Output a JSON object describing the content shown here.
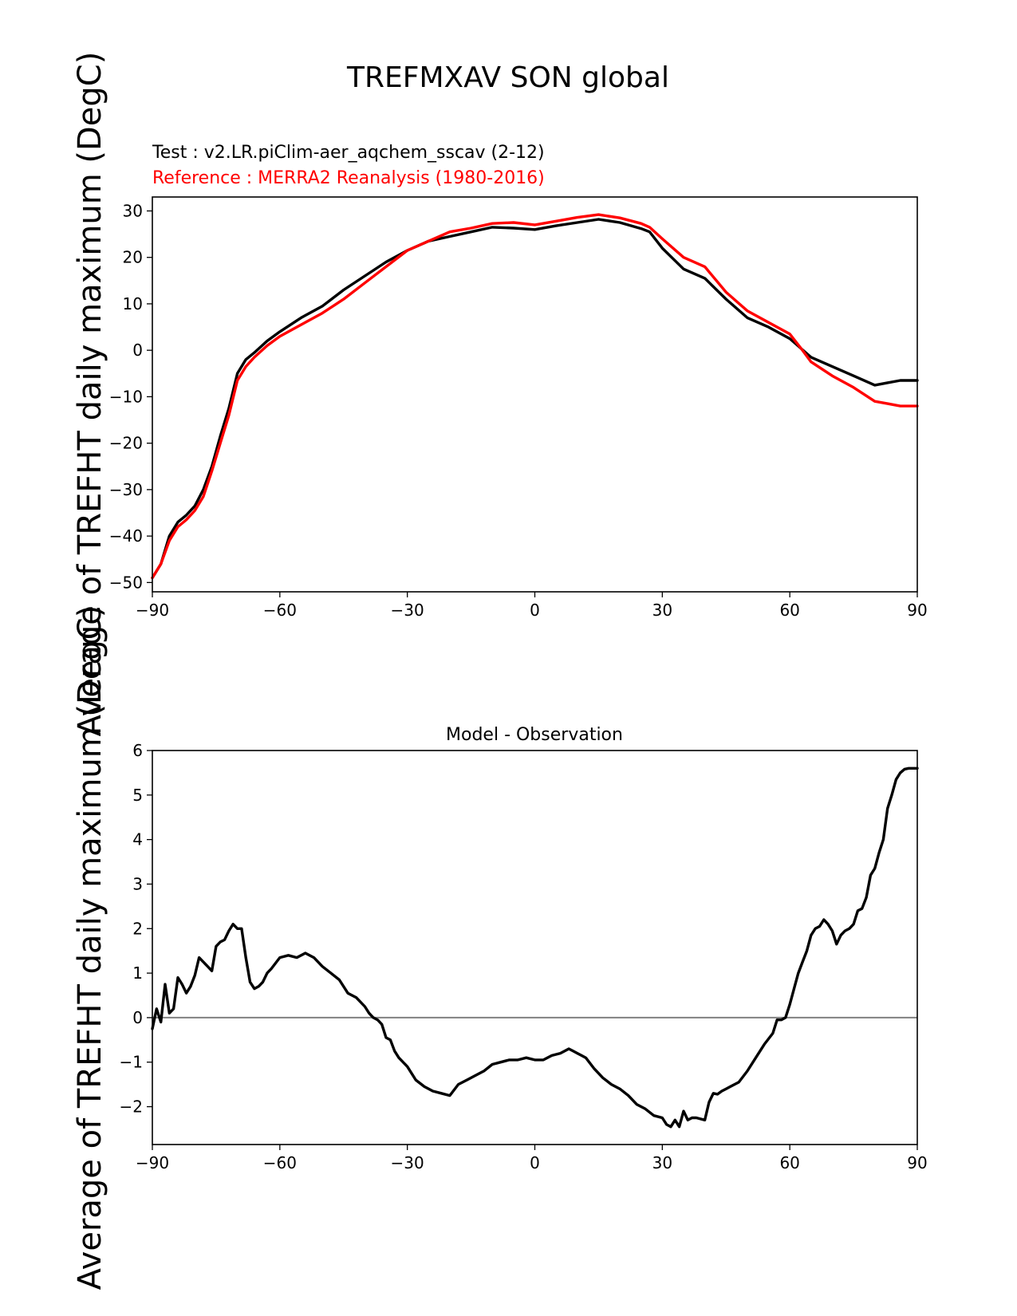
{
  "figure": {
    "suptitle": "TREFMXAV SON global"
  },
  "chart_data": [
    {
      "type": "line",
      "test_label": "Test : v2.LR.piClim-aer_aqchem_sscav (2-12)",
      "reference_label": "Reference : MERRA2 Reanalysis (1980-2016)",
      "ylabel": "Average of TREFHT daily maximum (DegC)",
      "xlim": [
        -90,
        90
      ],
      "ylim": [
        -52,
        33
      ],
      "xticks": [
        -90,
        -60,
        -30,
        0,
        30,
        60,
        90
      ],
      "xtick_labels": [
        "−90",
        "−60",
        "−30",
        "0",
        "30",
        "60",
        "90"
      ],
      "yticks": [
        30,
        20,
        10,
        0,
        -10,
        -20,
        -30,
        -40,
        -50
      ],
      "ytick_labels": [
        "30",
        "20",
        "10",
        "0",
        "−10",
        "−20",
        "−30",
        "−40",
        "−50"
      ],
      "series": [
        {
          "color": "#000000",
          "x": [
            -90,
            -88,
            -86,
            -84,
            -82,
            -80,
            -78,
            -76,
            -74,
            -72,
            -70,
            -68,
            -66,
            -63,
            -60,
            -55,
            -50,
            -45,
            -40,
            -35,
            -30,
            -25,
            -20,
            -15,
            -10,
            -5,
            0,
            5,
            10,
            15,
            20,
            25,
            27,
            30,
            35,
            40,
            45,
            50,
            55,
            60,
            65,
            70,
            75,
            80,
            83,
            86,
            90
          ],
          "y": [
            -49,
            -46,
            -40,
            -37,
            -35.5,
            -33.5,
            -30,
            -25,
            -18.5,
            -12.5,
            -5,
            -2,
            -0.5,
            2,
            4,
            7,
            9.5,
            13,
            16,
            19,
            21.5,
            23.5,
            24.5,
            25.5,
            26.5,
            26.3,
            26,
            26.8,
            27.5,
            28.2,
            27.5,
            26.2,
            25.5,
            22,
            17.5,
            15.5,
            11,
            7,
            5,
            2.5,
            -1.5,
            -3.5,
            -5.5,
            -7.5,
            -7,
            -6.5,
            -6.5
          ]
        },
        {
          "color": "#ff0000",
          "x": [
            -90,
            -88,
            -86,
            -84,
            -82,
            -80,
            -78,
            -76,
            -74,
            -72,
            -70,
            -68,
            -66,
            -63,
            -60,
            -55,
            -50,
            -45,
            -40,
            -35,
            -30,
            -25,
            -20,
            -15,
            -10,
            -5,
            0,
            5,
            10,
            15,
            20,
            25,
            27,
            30,
            35,
            40,
            45,
            50,
            55,
            60,
            63,
            65,
            70,
            75,
            80,
            83,
            86,
            90
          ],
          "y": [
            -49,
            -46,
            -41,
            -38,
            -36.5,
            -34.5,
            -31.5,
            -26,
            -20,
            -14,
            -6.5,
            -3.5,
            -1.5,
            1,
            3,
            5.5,
            8,
            11,
            14.5,
            18,
            21.5,
            23.5,
            25.5,
            26.3,
            27.3,
            27.5,
            27,
            27.8,
            28.6,
            29.2,
            28.5,
            27.3,
            26.5,
            24,
            20,
            18,
            12.5,
            8.5,
            6,
            3.5,
            0,
            -2.5,
            -5.5,
            -8,
            -11,
            -11.5,
            -12,
            -12
          ]
        }
      ]
    },
    {
      "type": "line",
      "title": "Model - Observation",
      "ylabel": "Average of TREFHT daily maximum (DegC)",
      "xlim": [
        -90,
        90
      ],
      "ylim": [
        -2.85,
        6
      ],
      "xticks": [
        -90,
        -60,
        -30,
        0,
        30,
        60,
        90
      ],
      "xtick_labels": [
        "−90",
        "−60",
        "−30",
        "0",
        "30",
        "60",
        "90"
      ],
      "yticks": [
        6,
        5,
        4,
        3,
        2,
        1,
        0,
        -1,
        -2
      ],
      "ytick_labels": [
        "6",
        "5",
        "4",
        "3",
        "2",
        "1",
        "0",
        "−1",
        "−2"
      ],
      "zero_line": 0,
      "series": [
        {
          "color": "#000000",
          "x": [
            -90,
            -89,
            -88,
            -87,
            -86,
            -85,
            -84,
            -83,
            -82,
            -81,
            -80,
            -79,
            -78,
            -77,
            -76,
            -75,
            -74,
            -73,
            -72,
            -71,
            -70,
            -69,
            -68,
            -67,
            -66,
            -65,
            -64,
            -63,
            -62,
            -60,
            -58,
            -56,
            -54,
            -52,
            -50,
            -48,
            -46,
            -44,
            -42,
            -40,
            -39,
            -38,
            -37,
            -36,
            -35,
            -34,
            -33,
            -32,
            -30,
            -28,
            -26,
            -24,
            -22,
            -20,
            -18,
            -16,
            -14,
            -12,
            -10,
            -8,
            -6,
            -4,
            -2,
            0,
            2,
            4,
            6,
            8,
            9,
            10,
            11,
            12,
            14,
            16,
            18,
            20,
            22,
            24,
            26,
            28,
            30,
            31,
            32,
            33,
            34,
            35,
            36,
            37,
            38,
            40,
            41,
            42,
            43,
            44,
            45,
            46,
            48,
            50,
            52,
            54,
            56,
            57,
            58,
            59,
            60,
            61,
            62,
            63,
            64,
            65,
            66,
            67,
            68,
            69,
            70,
            71,
            72,
            73,
            74,
            75,
            76,
            77,
            78,
            79,
            80,
            81,
            82,
            83,
            84,
            85,
            86,
            87,
            88,
            89,
            90
          ],
          "y": [
            -0.25,
            0.2,
            -0.1,
            0.75,
            0.1,
            0.2,
            0.9,
            0.75,
            0.55,
            0.7,
            0.95,
            1.35,
            1.25,
            1.15,
            1.05,
            1.6,
            1.7,
            1.75,
            1.95,
            2.1,
            2,
            2,
            1.35,
            0.8,
            0.65,
            0.7,
            0.8,
            1.0,
            1.1,
            1.35,
            1.4,
            1.35,
            1.45,
            1.35,
            1.15,
            1.0,
            0.85,
            0.55,
            0.45,
            0.25,
            0.1,
            0.0,
            -0.05,
            -0.15,
            -0.45,
            -0.5,
            -0.75,
            -0.9,
            -1.1,
            -1.4,
            -1.55,
            -1.65,
            -1.7,
            -1.75,
            -1.5,
            -1.4,
            -1.3,
            -1.2,
            -1.05,
            -1.0,
            -0.95,
            -0.95,
            -0.9,
            -0.95,
            -0.95,
            -0.85,
            -0.8,
            -0.7,
            -0.75,
            -0.8,
            -0.85,
            -0.9,
            -1.15,
            -1.35,
            -1.5,
            -1.6,
            -1.75,
            -1.95,
            -2.05,
            -2.2,
            -2.25,
            -2.4,
            -2.45,
            -2.3,
            -2.45,
            -2.1,
            -2.3,
            -2.25,
            -2.25,
            -2.3,
            -1.9,
            -1.7,
            -1.72,
            -1.65,
            -1.6,
            -1.55,
            -1.45,
            -1.2,
            -0.9,
            -0.6,
            -0.35,
            -0.05,
            -0.05,
            0.0,
            0.3,
            0.65,
            1.0,
            1.25,
            1.5,
            1.85,
            2.0,
            2.05,
            2.2,
            2.1,
            1.95,
            1.65,
            1.85,
            1.95,
            2.0,
            2.1,
            2.4,
            2.45,
            2.7,
            3.2,
            3.35,
            3.7,
            4.0,
            4.7,
            5.0,
            5.35,
            5.5,
            5.58,
            5.6,
            5.6,
            5.6
          ]
        }
      ]
    }
  ]
}
